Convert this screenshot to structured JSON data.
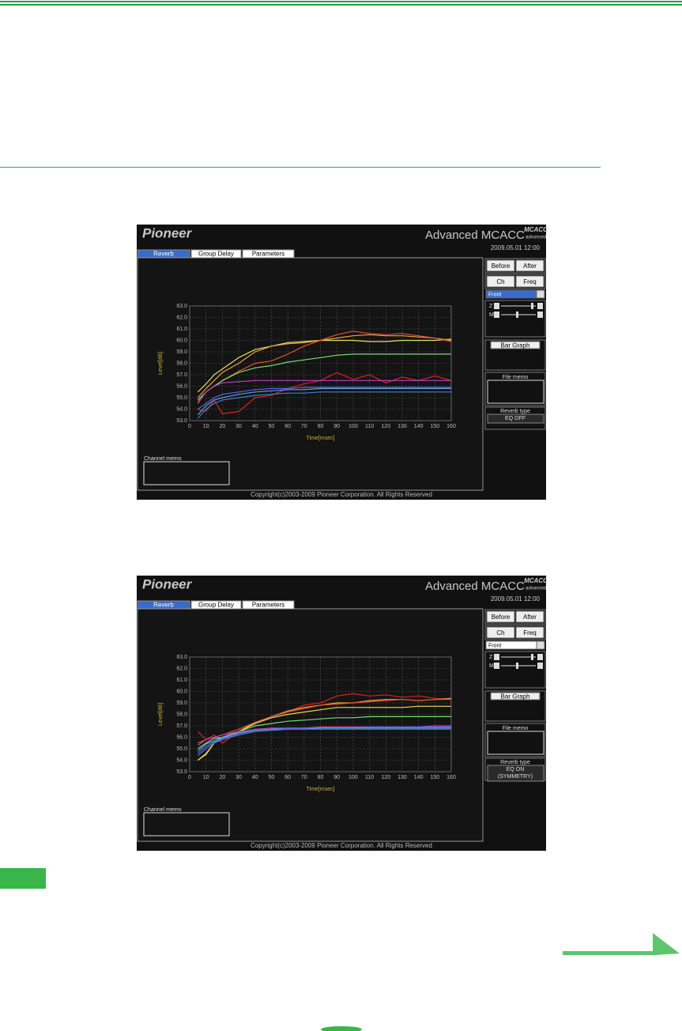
{
  "screenshots": [
    {
      "logo": "Pioneer",
      "product": "Advanced MCACC",
      "badge": [
        "MCACC",
        "advanced"
      ],
      "date": "2009.05.01 12:00",
      "tabs": [
        "Reverb",
        "Group Delay",
        "Parameters"
      ],
      "before_after": [
        "Before",
        "After"
      ],
      "ch_freq": [
        "Ch",
        "Freq"
      ],
      "channel": "Front",
      "sliders": [
        "Z",
        "M"
      ],
      "bar_graph": "Bar Graph",
      "file_memo": "File memo",
      "reverb_type_label": "Reverb type",
      "reverb_type_value": [
        "EQ OFF"
      ],
      "channel_memo": "Channel memo",
      "copyright": "Copyright(c)2003-2009 Pioneer Corporation. All Rights Reserved"
    },
    {
      "logo": "Pioneer",
      "product": "Advanced MCACC",
      "badge": [
        "MCACC",
        "advanced"
      ],
      "date": "2009.05.01 12:00",
      "tabs": [
        "Reverb",
        "Group Delay",
        "Parameters"
      ],
      "before_after": [
        "Before",
        "After"
      ],
      "ch_freq": [
        "Ch",
        "Freq"
      ],
      "channel": "Front",
      "sliders": [
        "Z",
        "M"
      ],
      "bar_graph": "Bar Graph",
      "file_memo": "File memo",
      "reverb_type_label": "Reverb type",
      "reverb_type_value": [
        "EQ ON",
        "(SYMMETRY)"
      ],
      "channel_memo": "Channel memo",
      "copyright": "Copyright(c)2003-2009 Pioneer Corporation. All Rights Reserved"
    }
  ],
  "chart_data": [
    {
      "type": "line",
      "x_label": "Time[msec]",
      "y_label": "Level[dB]",
      "grid": true,
      "x": [
        5,
        10,
        15,
        20,
        30,
        40,
        50,
        60,
        70,
        80,
        90,
        100,
        110,
        120,
        130,
        140,
        150,
        160
      ],
      "xlim": [
        0,
        160
      ],
      "xticks": [
        0,
        10,
        20,
        30,
        40,
        50,
        60,
        70,
        80,
        90,
        100,
        110,
        120,
        130,
        140,
        150,
        160
      ],
      "ylim": [
        53,
        63
      ],
      "yticks": [
        {
          "value": 53,
          "label": "53.0"
        },
        {
          "value": 54,
          "label": "54.0"
        },
        {
          "value": 55,
          "label": "55.0"
        },
        {
          "value": 56,
          "label": "56.0"
        },
        {
          "value": 57,
          "label": "57.0"
        },
        {
          "value": 58,
          "label": "58.0"
        },
        {
          "value": 59,
          "label": "59.0"
        },
        {
          "value": 60,
          "label": "60.0"
        },
        {
          "value": 61,
          "label": "61.0"
        },
        {
          "value": 62,
          "label": "62.0"
        },
        {
          "value": 63,
          "label": "63.0"
        }
      ],
      "series": [
        {
          "color": "#e0e060",
          "values": [
            55.5,
            56.2,
            57,
            57.5,
            58.5,
            59.2,
            59.5,
            59.8,
            59.9,
            60,
            60,
            60,
            59.9,
            59.9,
            60,
            60,
            60,
            60.1
          ]
        },
        {
          "color": "#f0a040",
          "values": [
            55,
            55.8,
            56.5,
            57.2,
            58,
            59,
            59.5,
            59.7,
            59.8,
            60,
            60.2,
            60.4,
            60.5,
            60.4,
            60.4,
            60.3,
            60.2,
            60
          ]
        },
        {
          "color": "#e05030",
          "values": [
            54.5,
            55.5,
            56,
            56.5,
            57.3,
            58,
            58.2,
            58.8,
            59.5,
            60,
            60.5,
            60.8,
            60.6,
            60.5,
            60.6,
            60.4,
            60.2,
            59.9
          ]
        },
        {
          "color": "#70e070",
          "values": [
            54.8,
            55.5,
            56,
            56.5,
            57.2,
            57.6,
            57.8,
            58.1,
            58.3,
            58.5,
            58.7,
            58.8,
            58.8,
            58.8,
            58.8,
            58.8,
            58.8,
            58.8
          ]
        },
        {
          "color": "#e02020",
          "values": [
            54,
            53.8,
            54.8,
            53.6,
            53.8,
            55,
            55.2,
            55.8,
            56.2,
            56.5,
            57.2,
            56.6,
            57,
            56.3,
            56.8,
            56.5,
            56.9,
            56.5
          ]
        },
        {
          "color": "#c040c0",
          "values": [
            54.6,
            55.5,
            56,
            56.3,
            56.4,
            56.5,
            56.5,
            56.5,
            56.5,
            56.5,
            56.5,
            56.5,
            56.5,
            56.5,
            56.5,
            56.5,
            56.5,
            56.5
          ]
        },
        {
          "color": "#6060ff",
          "values": [
            54,
            54.5,
            55,
            55.3,
            55.5,
            55.7,
            55.8,
            55.8,
            55.9,
            55.9,
            55.9,
            55.9,
            55.9,
            55.9,
            55.9,
            55.9,
            55.9,
            55.9
          ]
        },
        {
          "color": "#60a0e0",
          "values": [
            53.5,
            54.3,
            54.8,
            55,
            55.3,
            55.5,
            55.6,
            55.7,
            55.7,
            55.8,
            55.8,
            55.8,
            55.8,
            55.8,
            55.8,
            55.8,
            55.8,
            55.8
          ]
        },
        {
          "color": "#4080c0",
          "values": [
            53.2,
            54,
            54.5,
            54.8,
            55,
            55.2,
            55.3,
            55.4,
            55.4,
            55.5,
            55.5,
            55.5,
            55.5,
            55.5,
            55.5,
            55.5,
            55.5,
            55.5
          ]
        }
      ]
    },
    {
      "type": "line",
      "x_label": "Time[msec]",
      "y_label": "Level[dB]",
      "grid": true,
      "x": [
        5,
        10,
        15,
        20,
        30,
        40,
        50,
        60,
        70,
        80,
        90,
        100,
        110,
        120,
        130,
        140,
        150,
        160
      ],
      "xlim": [
        0,
        160
      ],
      "xticks": [
        0,
        10,
        20,
        30,
        40,
        50,
        60,
        70,
        80,
        90,
        100,
        110,
        120,
        130,
        140,
        150,
        160
      ],
      "ylim": [
        53,
        63
      ],
      "yticks": [
        {
          "value": 53,
          "label": "53.0"
        },
        {
          "value": 54,
          "label": "54.0"
        },
        {
          "value": 55,
          "label": "55.0"
        },
        {
          "value": 56,
          "label": "56.0"
        },
        {
          "value": 57,
          "label": "57.0"
        },
        {
          "value": 58,
          "label": "58.0"
        },
        {
          "value": 59,
          "label": "59.0"
        },
        {
          "value": 60,
          "label": "60.0"
        },
        {
          "value": 61,
          "label": "61.0"
        },
        {
          "value": 62,
          "label": "62.0"
        },
        {
          "value": 63,
          "label": "63.0"
        }
      ],
      "series": [
        {
          "color": "#e02020",
          "values": [
            56.5,
            55.8,
            56.2,
            55.5,
            56.5,
            57.2,
            57.8,
            58.2,
            58.8,
            59,
            59.6,
            59.8,
            59.6,
            59.7,
            59.5,
            59.6,
            59.4,
            59.3
          ]
        },
        {
          "color": "#f0a040",
          "values": [
            54,
            54.6,
            55.5,
            56,
            56.5,
            57.3,
            57.8,
            58.3,
            58.6,
            58.8,
            59,
            59,
            59.2,
            59.3,
            59.3,
            59.2,
            59.3,
            59.4
          ]
        },
        {
          "color": "#e0e060",
          "values": [
            54,
            54.5,
            55.5,
            55.9,
            56.5,
            57.2,
            57.7,
            58,
            58.2,
            58.4,
            58.6,
            58.6,
            58.6,
            58.6,
            58.6,
            58.7,
            58.7,
            58.7
          ]
        },
        {
          "color": "#e05030",
          "values": [
            55.5,
            55.8,
            56,
            56.2,
            56.7,
            57.3,
            57.8,
            58.2,
            58.5,
            58.8,
            58.9,
            59,
            59.1,
            59.2,
            59.3,
            59.2,
            59.3,
            59.3
          ]
        },
        {
          "color": "#70e070",
          "values": [
            55,
            55.5,
            55.9,
            56,
            56.5,
            57,
            57.2,
            57.4,
            57.5,
            57.6,
            57.7,
            57.7,
            57.8,
            57.8,
            57.8,
            57.8,
            57.8,
            57.8
          ]
        },
        {
          "color": "#c040c0",
          "values": [
            55.3,
            55.8,
            56,
            56.2,
            56.5,
            56.7,
            56.8,
            56.8,
            56.8,
            56.9,
            56.9,
            56.9,
            56.9,
            56.9,
            56.9,
            56.9,
            56.9,
            56.9
          ]
        },
        {
          "color": "#6060ff",
          "values": [
            54.6,
            55.2,
            55.6,
            55.9,
            56.3,
            56.6,
            56.7,
            56.8,
            56.8,
            56.8,
            56.8,
            56.8,
            56.9,
            56.9,
            56.9,
            56.9,
            57,
            57
          ]
        },
        {
          "color": "#60a0e0",
          "values": [
            54.8,
            55.4,
            55.7,
            56,
            56.4,
            56.6,
            56.7,
            56.7,
            56.7,
            56.8,
            56.8,
            56.8,
            56.8,
            56.8,
            56.8,
            56.8,
            56.8,
            56.8
          ]
        },
        {
          "color": "#4080c0",
          "values": [
            54.4,
            55,
            55.5,
            55.8,
            56.2,
            56.5,
            56.6,
            56.7,
            56.7,
            56.7,
            56.7,
            56.7,
            56.7,
            56.7,
            56.7,
            56.7,
            56.7,
            56.7
          ]
        }
      ]
    }
  ]
}
